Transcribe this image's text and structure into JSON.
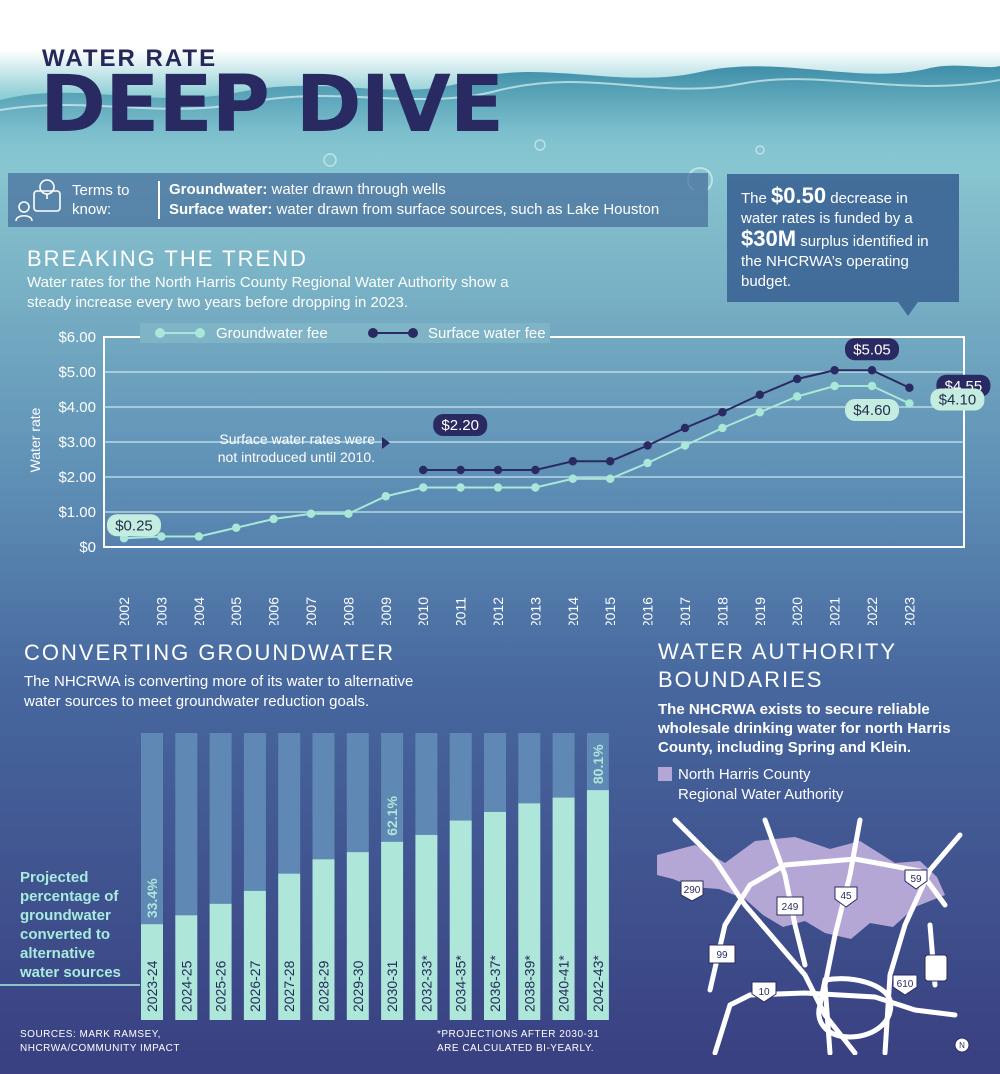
{
  "header": {
    "kicker": "WATER RATE",
    "title": "DEEP DIVE"
  },
  "terms": {
    "label": "Terms to know:",
    "items": [
      {
        "term": "Groundwater:",
        "def": " water drawn through wells"
      },
      {
        "term": "Surface water:",
        "def": " water drawn from surface sources, such as Lake Houston"
      }
    ]
  },
  "callout": {
    "pre": "The ",
    "amount": "$0.50",
    "mid": " decrease in water rates is funded by a ",
    "surplus": "$30M",
    "post": " surplus identified in the NHCRWA’s operating budget."
  },
  "trend": {
    "heading": "BREAKING THE TREND",
    "description": "Water rates for the North Harris County Regional Water Authority show a steady increase every two years before dropping in 2023.",
    "note": [
      "Surface water rates were",
      "not introduced until 2010."
    ]
  },
  "conversion": {
    "heading": "CONVERTING GROUNDWATER",
    "description": [
      "The NHCRWA is converting more of its water to alternative",
      "water sources to meet groundwater reduction goals."
    ],
    "projected_label": [
      "Projected",
      "percentage of",
      "groundwater",
      "converted to",
      "alternative",
      "water sources"
    ]
  },
  "boundaries": {
    "heading": [
      "WATER AUTHORITY",
      "BOUNDARIES"
    ],
    "description": [
      "The NHCRWA exists to secure reliable",
      "wholesale drinking water for north Harris",
      "County, including Spring and Klein."
    ],
    "legend": [
      "North Harris County",
      "Regional Water Authority"
    ],
    "highways": [
      "290",
      "249",
      "45",
      "59",
      "99",
      "10",
      "610",
      "N"
    ],
    "colors": {
      "authority": "#b4a7d6"
    }
  },
  "footer": {
    "sources": [
      "SOURCES: MARK RAMSEY,",
      "NHCRWA/COMMUNITY IMPACT"
    ],
    "note": [
      "*PROJECTIONS AFTER 2030-31",
      "ARE CALCULATED BI-YEARLY."
    ]
  },
  "chart_data": [
    {
      "type": "line",
      "ylabel": "Water rate",
      "ylim": [
        0,
        6
      ],
      "yticks": [
        "$0",
        "$1.00",
        "$2.00",
        "$3.00",
        "$4.00",
        "$5.00",
        "$6.00"
      ],
      "x": [
        "2002",
        "2003",
        "2004",
        "2005",
        "2006",
        "2007",
        "2008",
        "2009",
        "2010",
        "2011",
        "2012",
        "2013",
        "2014",
        "2015",
        "2016",
        "2017",
        "2018",
        "2019",
        "2020",
        "2021",
        "2022",
        "2023"
      ],
      "series": [
        {
          "name": "Groundwater fee",
          "color": "#a9e8d8",
          "values": [
            0.25,
            0.3,
            0.3,
            0.55,
            0.8,
            0.95,
            0.95,
            1.45,
            1.7,
            1.7,
            1.7,
            1.7,
            1.95,
            1.95,
            2.4,
            2.9,
            3.4,
            3.85,
            4.3,
            4.6,
            4.6,
            4.1
          ]
        },
        {
          "name": "Surface water fee",
          "color": "#2a2a62",
          "values": [
            null,
            null,
            null,
            null,
            null,
            null,
            null,
            null,
            2.2,
            2.2,
            2.2,
            2.2,
            2.45,
            2.45,
            2.9,
            3.4,
            3.85,
            4.35,
            4.8,
            5.05,
            5.05,
            4.55
          ]
        }
      ],
      "data_labels": [
        {
          "series": "Groundwater fee",
          "x": "2002",
          "text": "$0.25"
        },
        {
          "series": "Surface water fee",
          "x": "2010",
          "text": "$2.20"
        },
        {
          "series": "Surface water fee",
          "x": "2022",
          "text": "$5.05"
        },
        {
          "series": "Groundwater fee",
          "x": "2022",
          "text": "$4.60"
        },
        {
          "series": "Surface water fee",
          "x": "2023",
          "text": "$4.55"
        },
        {
          "series": "Groundwater fee",
          "x": "2023",
          "text": "$4.10"
        }
      ],
      "grid": true,
      "legend": "top"
    },
    {
      "type": "bar",
      "categories": [
        "2023-24",
        "2024-25",
        "2025-26",
        "2026-27",
        "2027-28",
        "2028-29",
        "2029-30",
        "2030-31",
        "2032-33*",
        "2034-35*",
        "2036-37*",
        "2038-39*",
        "2040-41*",
        "2042-43*"
      ],
      "values": [
        33.4,
        36.5,
        40.5,
        45,
        51,
        56,
        58.5,
        62.1,
        64.5,
        69.5,
        72.5,
        75.5,
        77.5,
        80.1
      ],
      "ylim": [
        0,
        100
      ],
      "data_labels": [
        {
          "category": "2023-24",
          "text": "33.4%"
        },
        {
          "category": "2030-31",
          "text": "62.1%"
        },
        {
          "category": "2042-43*",
          "text": "80.1%"
        }
      ],
      "colors": {
        "converted": "#aee6d9",
        "remaining": "#5f89b4"
      }
    }
  ]
}
